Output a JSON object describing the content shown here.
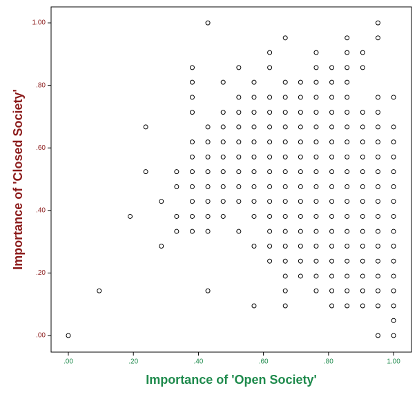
{
  "chart_data": {
    "type": "scatter",
    "x_label": "Importance of 'Open Society'",
    "y_label": "Importance of 'Closed Society'",
    "xlim": [
      -0.053,
      1.055
    ],
    "ylim": [
      -0.053,
      1.051
    ],
    "xticks": [
      {
        "value": 0,
        "label": ".00"
      },
      {
        "value": 0.2,
        "label": ".20"
      },
      {
        "value": 0.4,
        "label": ".40"
      },
      {
        "value": 0.6,
        "label": ".60"
      },
      {
        "value": 0.8,
        "label": ".80"
      },
      {
        "value": 1,
        "label": "1.00"
      }
    ],
    "yticks": [
      {
        "value": 0,
        "label": ".00"
      },
      {
        "value": 0.2,
        "label": ".20"
      },
      {
        "value": 0.4,
        "label": ".40"
      },
      {
        "value": 0.6,
        "label": ".60"
      },
      {
        "value": 0.8,
        "label": ".80"
      },
      {
        "value": 1,
        "label": "1.00"
      }
    ],
    "x_color": "#1e8a4c",
    "y_color": "#8b1a1a",
    "color": "#000000",
    "x": [
      0,
      0.095,
      0.19,
      0.238,
      0.238,
      0.286,
      0.286,
      0.333,
      0.333,
      0.333,
      0.333,
      0.381,
      0.381,
      0.381,
      0.381,
      0.381,
      0.381,
      0.381,
      0.381,
      0.381,
      0.381,
      0.381,
      0.429,
      0.429,
      0.429,
      0.429,
      0.429,
      0.429,
      0.429,
      0.429,
      0.429,
      0.429,
      0.476,
      0.476,
      0.476,
      0.476,
      0.476,
      0.476,
      0.476,
      0.476,
      0.476,
      0.524,
      0.524,
      0.524,
      0.524,
      0.524,
      0.524,
      0.524,
      0.524,
      0.524,
      0.524,
      0.571,
      0.571,
      0.571,
      0.571,
      0.571,
      0.571,
      0.571,
      0.571,
      0.571,
      0.571,
      0.571,
      0.571,
      0.619,
      0.619,
      0.619,
      0.619,
      0.619,
      0.619,
      0.619,
      0.619,
      0.619,
      0.619,
      0.619,
      0.619,
      0.619,
      0.619,
      0.667,
      0.667,
      0.667,
      0.667,
      0.667,
      0.667,
      0.667,
      0.667,
      0.667,
      0.667,
      0.667,
      0.667,
      0.667,
      0.667,
      0.667,
      0.667,
      0.667,
      0.714,
      0.714,
      0.714,
      0.714,
      0.714,
      0.714,
      0.714,
      0.714,
      0.714,
      0.714,
      0.714,
      0.714,
      0.714,
      0.714,
      0.762,
      0.762,
      0.762,
      0.762,
      0.762,
      0.762,
      0.762,
      0.762,
      0.762,
      0.762,
      0.762,
      0.762,
      0.762,
      0.762,
      0.762,
      0.762,
      0.762,
      0.81,
      0.81,
      0.81,
      0.81,
      0.81,
      0.81,
      0.81,
      0.81,
      0.81,
      0.81,
      0.81,
      0.81,
      0.81,
      0.81,
      0.81,
      0.81,
      0.81,
      0.857,
      0.857,
      0.857,
      0.857,
      0.857,
      0.857,
      0.857,
      0.857,
      0.857,
      0.857,
      0.857,
      0.857,
      0.857,
      0.857,
      0.857,
      0.857,
      0.857,
      0.857,
      0.857,
      0.905,
      0.905,
      0.905,
      0.905,
      0.905,
      0.905,
      0.905,
      0.905,
      0.905,
      0.905,
      0.905,
      0.905,
      0.905,
      0.905,
      0.905,
      0.905,
      0.952,
      0.952,
      0.952,
      0.952,
      0.952,
      0.952,
      0.952,
      0.952,
      0.952,
      0.952,
      0.952,
      0.952,
      0.952,
      0.952,
      0.952,
      0.952,
      0.952,
      0.952,
      1,
      1,
      1,
      1,
      1,
      1,
      1,
      1,
      1,
      1,
      1,
      1,
      1,
      1,
      1,
      1
    ],
    "y": [
      0,
      0.143,
      0.381,
      0.667,
      0.524,
      0.429,
      0.286,
      0.524,
      0.476,
      0.381,
      0.333,
      0.857,
      0.81,
      0.762,
      0.714,
      0.619,
      0.571,
      0.524,
      0.476,
      0.429,
      0.381,
      0.333,
      1,
      0.667,
      0.619,
      0.571,
      0.524,
      0.476,
      0.429,
      0.381,
      0.333,
      0.143,
      0.81,
      0.714,
      0.667,
      0.619,
      0.571,
      0.524,
      0.476,
      0.429,
      0.381,
      0.857,
      0.762,
      0.714,
      0.667,
      0.619,
      0.571,
      0.524,
      0.476,
      0.429,
      0.333,
      0.81,
      0.762,
      0.714,
      0.667,
      0.619,
      0.571,
      0.524,
      0.476,
      0.429,
      0.381,
      0.286,
      0.095,
      0.905,
      0.857,
      0.762,
      0.714,
      0.667,
      0.619,
      0.571,
      0.524,
      0.476,
      0.429,
      0.381,
      0.333,
      0.286,
      0.238,
      0.952,
      0.81,
      0.762,
      0.714,
      0.667,
      0.619,
      0.571,
      0.524,
      0.476,
      0.429,
      0.381,
      0.333,
      0.286,
      0.238,
      0.19,
      0.143,
      0.095,
      0.81,
      0.762,
      0.714,
      0.667,
      0.619,
      0.571,
      0.524,
      0.476,
      0.429,
      0.381,
      0.333,
      0.286,
      0.238,
      0.19,
      0.905,
      0.857,
      0.81,
      0.762,
      0.714,
      0.667,
      0.619,
      0.571,
      0.524,
      0.476,
      0.429,
      0.381,
      0.333,
      0.286,
      0.238,
      0.19,
      0.143,
      0.857,
      0.81,
      0.762,
      0.714,
      0.667,
      0.619,
      0.571,
      0.524,
      0.476,
      0.429,
      0.381,
      0.333,
      0.286,
      0.238,
      0.19,
      0.143,
      0.095,
      0.952,
      0.905,
      0.857,
      0.81,
      0.762,
      0.714,
      0.667,
      0.619,
      0.571,
      0.524,
      0.476,
      0.429,
      0.381,
      0.333,
      0.286,
      0.238,
      0.19,
      0.143,
      0.095,
      0.905,
      0.857,
      0.714,
      0.667,
      0.619,
      0.571,
      0.524,
      0.476,
      0.429,
      0.381,
      0.333,
      0.286,
      0.238,
      0.19,
      0.143,
      0.095,
      1,
      0.952,
      0.762,
      0.714,
      0.667,
      0.619,
      0.571,
      0.524,
      0.476,
      0.429,
      0.381,
      0.333,
      0.286,
      0.238,
      0.19,
      0.143,
      0.095,
      0,
      0.762,
      0.667,
      0.619,
      0.571,
      0.524,
      0.476,
      0.429,
      0.381,
      0.333,
      0.286,
      0.238,
      0.19,
      0.143,
      0.095,
      0.048,
      0
    ]
  }
}
